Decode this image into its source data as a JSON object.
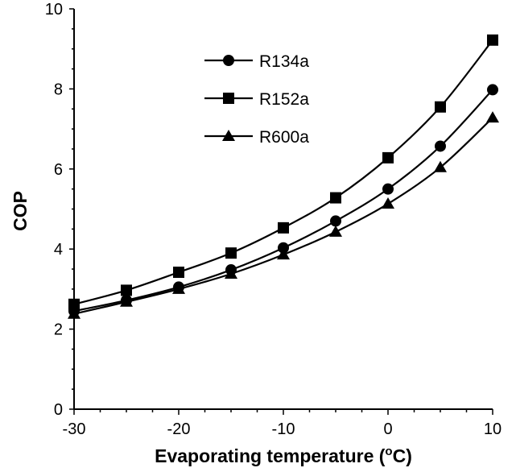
{
  "chart_data": {
    "type": "line",
    "title": "",
    "xlabel": "Evaporating temperature (",
    "xlabel_superscript": "o",
    "xlabel_end": "C)",
    "ylabel": "COP",
    "x": [
      -30,
      -25,
      -20,
      -15,
      -10,
      -5,
      0,
      5,
      10
    ],
    "xlim": [
      -30,
      10
    ],
    "ylim": [
      0,
      10
    ],
    "xticks": [
      -30,
      -20,
      -10,
      0,
      10
    ],
    "yticks": [
      0,
      2,
      4,
      6,
      8,
      10
    ],
    "grid": false,
    "legend_position": "top-center",
    "series": [
      {
        "name": "R134a",
        "marker": "circle",
        "values": [
          2.45,
          2.72,
          3.05,
          3.48,
          4.03,
          4.7,
          5.5,
          6.57,
          7.98
        ]
      },
      {
        "name": "R152a",
        "marker": "square",
        "values": [
          2.62,
          2.97,
          3.42,
          3.9,
          4.53,
          5.28,
          6.28,
          7.55,
          9.22
        ]
      },
      {
        "name": "R600a",
        "marker": "triangle",
        "values": [
          2.38,
          2.68,
          3.0,
          3.38,
          3.86,
          4.43,
          5.13,
          6.04,
          7.28
        ]
      }
    ],
    "colors": {
      "line": "#000000",
      "marker": "#000000",
      "axis": "#000000"
    }
  }
}
